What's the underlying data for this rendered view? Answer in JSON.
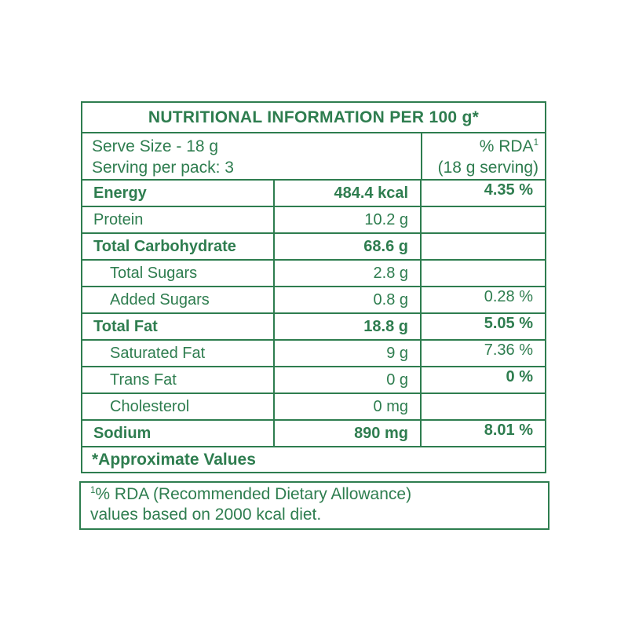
{
  "colors": {
    "green": "#2e7d4f",
    "background": "#ffffff"
  },
  "table": {
    "title": "NUTRITIONAL INFORMATION PER 100 g*",
    "serve_size_line1": "Serve Size - 18 g",
    "serve_size_line2": "Serving per pack: 3",
    "rda_header_label": "% RDA",
    "rda_header_sup": "1",
    "rda_header_sub": "(18 g serving)",
    "rows": [
      {
        "label": "Energy",
        "amount": "484.4 kcal",
        "rda": "4.35 %"
      },
      {
        "label": "Protein",
        "amount": "10.2 g",
        "rda": ""
      },
      {
        "label": "Total Carbohydrate",
        "amount": "68.6 g",
        "rda": ""
      },
      {
        "label": "Total Sugars",
        "amount": "2.8 g",
        "rda": ""
      },
      {
        "label": "Added Sugars",
        "amount": "0.8 g",
        "rda": "0.28 %"
      },
      {
        "label": "Total Fat",
        "amount": "18.8 g",
        "rda": "5.05 %"
      },
      {
        "label": "Saturated Fat",
        "amount": "9 g",
        "rda": "7.36 %"
      },
      {
        "label": "Trans Fat",
        "amount": "0 g",
        "rda": "0 %"
      },
      {
        "label": "Cholesterol",
        "amount": "0 mg",
        "rda": ""
      },
      {
        "label": "Sodium",
        "amount": "890 mg",
        "rda": "8.01 %"
      }
    ],
    "footer": "*Approximate Values"
  },
  "footnote": {
    "sup": "1",
    "line1": "% RDA (Recommended Dietary Allowance)",
    "line2": "values based on 2000 kcal diet."
  }
}
